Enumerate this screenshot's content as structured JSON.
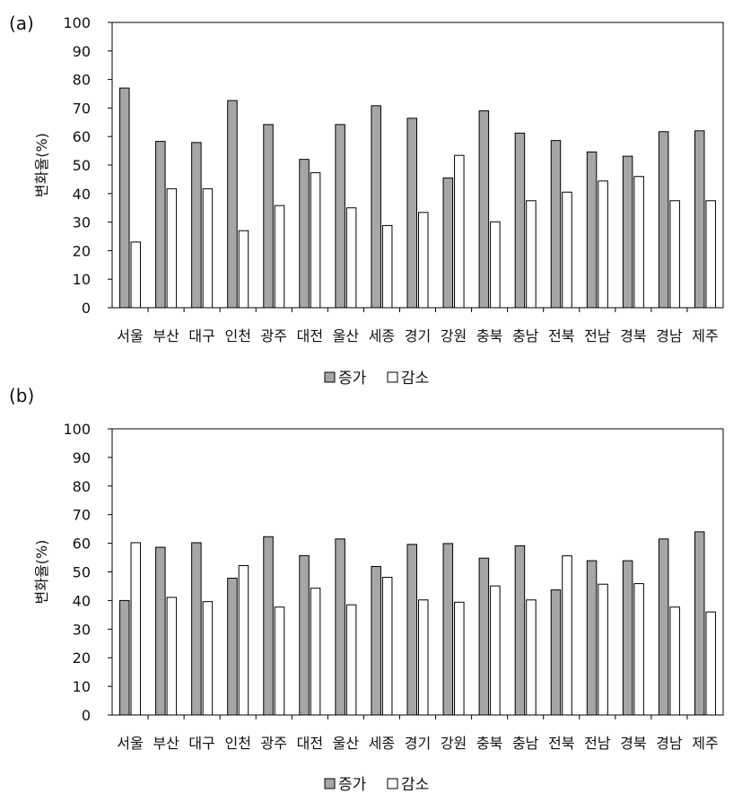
{
  "colors": {
    "increase": "#a6a6a6",
    "decrease": "#ffffff",
    "stroke": "#000000"
  },
  "chart_data": [
    {
      "type": "bar",
      "panel_label": "(a)",
      "ylabel": "변화율(%)",
      "ylim": [
        0,
        100
      ],
      "yticks": [
        0,
        10,
        20,
        30,
        40,
        50,
        60,
        70,
        80,
        90,
        100
      ],
      "grid": false,
      "legend_position": "bottom-center",
      "categories": [
        "서울",
        "부산",
        "대구",
        "인천",
        "광주",
        "대전",
        "울산",
        "세종",
        "경기",
        "강원",
        "충북",
        "충남",
        "전북",
        "전남",
        "경북",
        "경남",
        "제주"
      ],
      "series": [
        {
          "name": "증가",
          "values": [
            77,
            58.3,
            57.9,
            72.6,
            64.2,
            52,
            64.2,
            70.8,
            66.4,
            45.5,
            69,
            61.2,
            58.6,
            54.6,
            53.1,
            61.7,
            62
          ]
        },
        {
          "name": "감소",
          "values": [
            23,
            41.7,
            41.7,
            27,
            35.8,
            47.3,
            35,
            28.8,
            33.4,
            53.4,
            30.1,
            37.5,
            40.5,
            44.4,
            46,
            37.5,
            37.5
          ]
        }
      ]
    },
    {
      "type": "bar",
      "panel_label": "(b)",
      "ylabel": "변화율(%)",
      "ylim": [
        0,
        100
      ],
      "yticks": [
        0,
        10,
        20,
        30,
        40,
        50,
        60,
        70,
        80,
        90,
        100
      ],
      "grid": false,
      "legend_position": "bottom-center",
      "categories": [
        "서울",
        "부산",
        "대구",
        "인천",
        "광주",
        "대전",
        "울산",
        "세종",
        "경기",
        "강원",
        "충북",
        "충남",
        "전북",
        "전남",
        "경북",
        "경남",
        "제주"
      ],
      "series": [
        {
          "name": "증가",
          "values": [
            40,
            58.6,
            60.2,
            47.8,
            62.3,
            55.7,
            61.5,
            51.9,
            59.6,
            59.9,
            54.8,
            59.1,
            43.7,
            53.9,
            53.9,
            61.5,
            64
          ]
        },
        {
          "name": "감소",
          "values": [
            60.2,
            41.1,
            39.6,
            52.2,
            37.7,
            44.3,
            38.5,
            48.1,
            40.2,
            39.4,
            45.1,
            40.2,
            55.6,
            45.7,
            45.9,
            37.7,
            36
          ]
        }
      ]
    }
  ]
}
